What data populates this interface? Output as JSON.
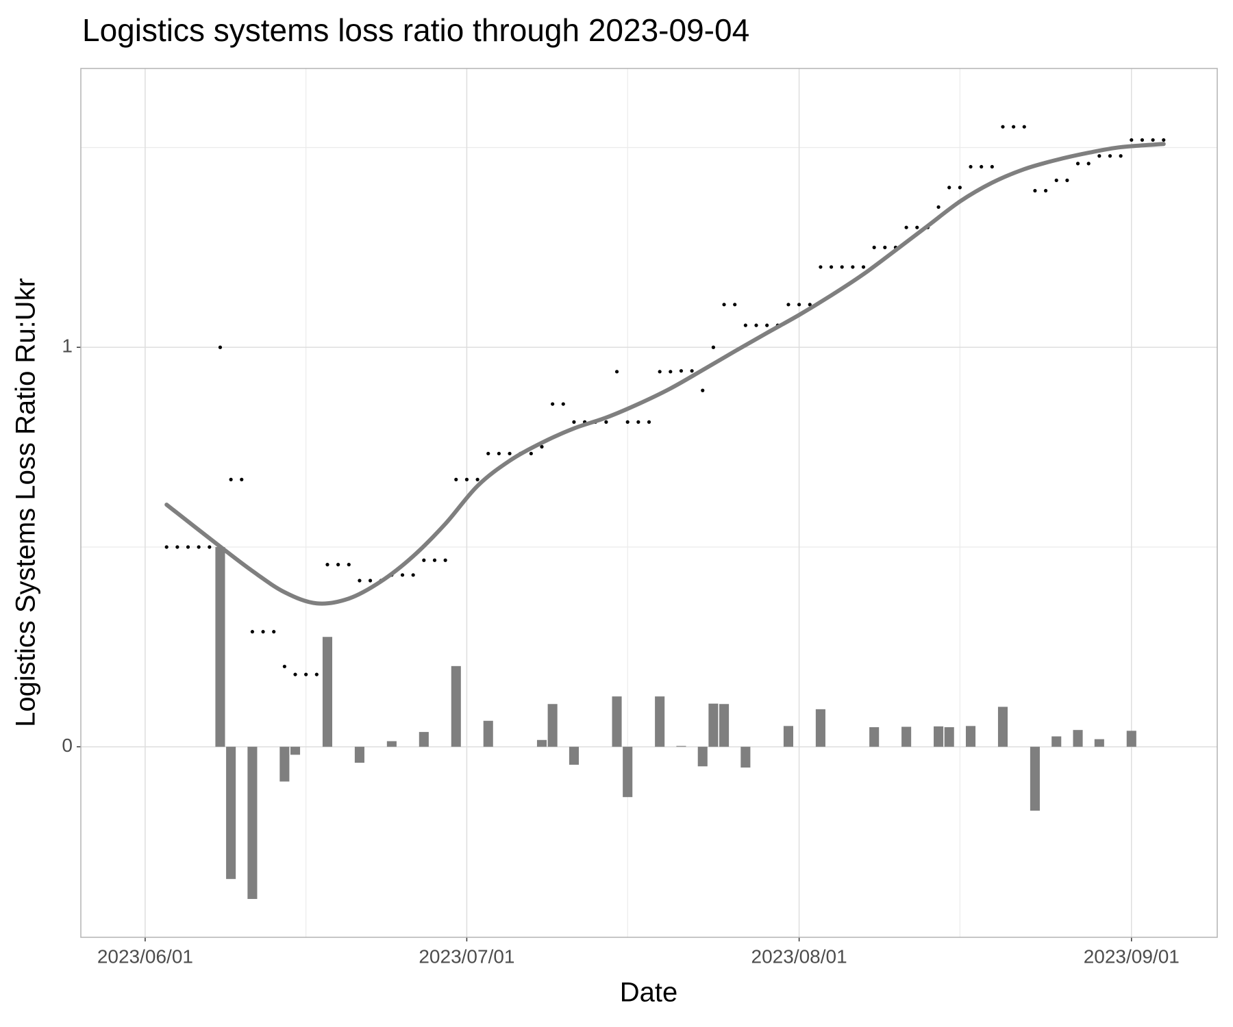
{
  "chart_data": {
    "type": "combo",
    "title": "Logistics systems loss ratio through 2023-09-04",
    "x_label": "Date",
    "y_label": "Logistics Systems Loss Ratio Ru:Ukr",
    "x": [
      "2023-06-03",
      "2023-06-04",
      "2023-06-05",
      "2023-06-06",
      "2023-06-07",
      "2023-06-08",
      "2023-06-09",
      "2023-06-10",
      "2023-06-11",
      "2023-06-12",
      "2023-06-13",
      "2023-06-14",
      "2023-06-15",
      "2023-06-16",
      "2023-06-17",
      "2023-06-18",
      "2023-06-19",
      "2023-06-20",
      "2023-06-21",
      "2023-06-22",
      "2023-06-23",
      "2023-06-24",
      "2023-06-25",
      "2023-06-26",
      "2023-06-27",
      "2023-06-28",
      "2023-06-29",
      "2023-06-30",
      "2023-07-01",
      "2023-07-02",
      "2023-07-03",
      "2023-07-04",
      "2023-07-05",
      "2023-07-06",
      "2023-07-07",
      "2023-07-08",
      "2023-07-09",
      "2023-07-10",
      "2023-07-11",
      "2023-07-12",
      "2023-07-13",
      "2023-07-14",
      "2023-07-15",
      "2023-07-16",
      "2023-07-17",
      "2023-07-18",
      "2023-07-19",
      "2023-07-20",
      "2023-07-21",
      "2023-07-22",
      "2023-07-23",
      "2023-07-24",
      "2023-07-25",
      "2023-07-26",
      "2023-07-27",
      "2023-07-28",
      "2023-07-29",
      "2023-07-30",
      "2023-07-31",
      "2023-08-01",
      "2023-08-02",
      "2023-08-03",
      "2023-08-04",
      "2023-08-05",
      "2023-08-06",
      "2023-08-07",
      "2023-08-08",
      "2023-08-09",
      "2023-08-10",
      "2023-08-11",
      "2023-08-12",
      "2023-08-13",
      "2023-08-14",
      "2023-08-15",
      "2023-08-16",
      "2023-08-17",
      "2023-08-18",
      "2023-08-19",
      "2023-08-20",
      "2023-08-21",
      "2023-08-22",
      "2023-08-23",
      "2023-08-24",
      "2023-08-25",
      "2023-08-26",
      "2023-08-27",
      "2023-08-28",
      "2023-08-29",
      "2023-08-30",
      "2023-08-31",
      "2023-09-01",
      "2023-09-02",
      "2023-09-03",
      "2023-09-04"
    ],
    "series": [
      {
        "type": "bar",
        "color": "#7f7f7f",
        "values": [
          null,
          0,
          0,
          0,
          0,
          0.5,
          -0.331,
          0,
          -0.381,
          0,
          0,
          -0.087,
          -0.02,
          0,
          0,
          0.275,
          0,
          0,
          -0.04,
          0,
          0,
          0.014,
          0,
          0,
          0.037,
          0,
          0,
          0.202,
          0,
          0,
          0.065,
          0,
          0,
          0,
          0,
          0.017,
          0.107,
          0,
          -0.045,
          0,
          0,
          0,
          0.126,
          -0.126,
          0,
          0,
          0.126,
          0,
          0.002,
          0,
          -0.049,
          0.108,
          0.107,
          0,
          -0.052,
          0,
          0,
          0,
          0.052,
          0,
          0,
          0.094,
          0,
          0,
          0,
          0,
          0.049,
          0,
          0,
          0.05,
          0,
          0,
          0.051,
          0.049,
          0,
          0.052,
          0,
          0,
          0.1,
          0,
          0,
          -0.16,
          0,
          0.026,
          0,
          0.042,
          0,
          0.019,
          0,
          0,
          0.04,
          0,
          0,
          0
        ]
      },
      {
        "type": "scatter",
        "color": "#000000",
        "values": [
          0.5,
          0.5,
          0.5,
          0.5,
          0.5,
          1.0,
          0.669,
          0.669,
          0.288,
          0.288,
          0.288,
          0.201,
          0.181,
          0.181,
          0.181,
          0.456,
          0.456,
          0.456,
          0.416,
          0.416,
          0.416,
          0.43,
          0.43,
          0.43,
          0.467,
          0.467,
          0.467,
          0.669,
          0.669,
          0.669,
          0.734,
          0.734,
          0.734,
          0.734,
          0.734,
          0.751,
          0.858,
          0.858,
          0.813,
          0.813,
          0.813,
          0.813,
          0.939,
          0.813,
          0.813,
          0.813,
          0.939,
          0.939,
          0.941,
          0.941,
          0.892,
          1.0,
          1.107,
          1.107,
          1.055,
          1.055,
          1.055,
          1.055,
          1.107,
          1.107,
          1.107,
          1.201,
          1.201,
          1.201,
          1.201,
          1.201,
          1.25,
          1.25,
          1.25,
          1.3,
          1.3,
          1.3,
          1.351,
          1.4,
          1.4,
          1.452,
          1.452,
          1.452,
          1.552,
          1.552,
          1.552,
          1.392,
          1.392,
          1.418,
          1.418,
          1.46,
          1.46,
          1.479,
          1.479,
          1.479,
          1.519,
          1.519,
          1.519,
          1.519
        ]
      },
      {
        "type": "line",
        "color": "#7f7f7f",
        "x": [
          "2023-06-03",
          "2023-06-08",
          "2023-06-11",
          "2023-06-14",
          "2023-06-17",
          "2023-06-20",
          "2023-06-23",
          "2023-06-26",
          "2023-06-29",
          "2023-07-02",
          "2023-07-05",
          "2023-07-08",
          "2023-07-11",
          "2023-07-14",
          "2023-07-17",
          "2023-07-20",
          "2023-07-23",
          "2023-07-26",
          "2023-07-29",
          "2023-08-01",
          "2023-08-04",
          "2023-08-07",
          "2023-08-10",
          "2023-08-13",
          "2023-08-16",
          "2023-08-19",
          "2023-08-22",
          "2023-08-25",
          "2023-08-28",
          "2023-08-31",
          "2023-09-04"
        ],
        "values": [
          0.606,
          0.501,
          0.44,
          0.387,
          0.359,
          0.371,
          0.414,
          0.477,
          0.558,
          0.653,
          0.716,
          0.761,
          0.797,
          0.824,
          0.858,
          0.897,
          0.943,
          0.99,
          1.036,
          1.081,
          1.13,
          1.183,
          1.243,
          1.304,
          1.365,
          1.412,
          1.446,
          1.469,
          1.487,
          1.501,
          1.509
        ]
      }
    ],
    "xlim": [
      "2023-05-26",
      "2023-09-09"
    ],
    "xticks": [
      {
        "value": "2023-06-01",
        "label": "2023/06/01"
      },
      {
        "value": "2023-07-01",
        "label": "2023/07/01"
      },
      {
        "value": "2023-08-01",
        "label": "2023/08/01"
      },
      {
        "value": "2023-09-01",
        "label": "2023/09/01"
      }
    ],
    "minor_xticks": [
      "2023-06-16",
      "2023-07-16",
      "2023-08-16"
    ],
    "ylim": [
      -0.477,
      1.698
    ],
    "yticks": [
      0,
      1
    ],
    "minor_yticks": [
      0.5,
      1.5
    ],
    "grid": true
  }
}
